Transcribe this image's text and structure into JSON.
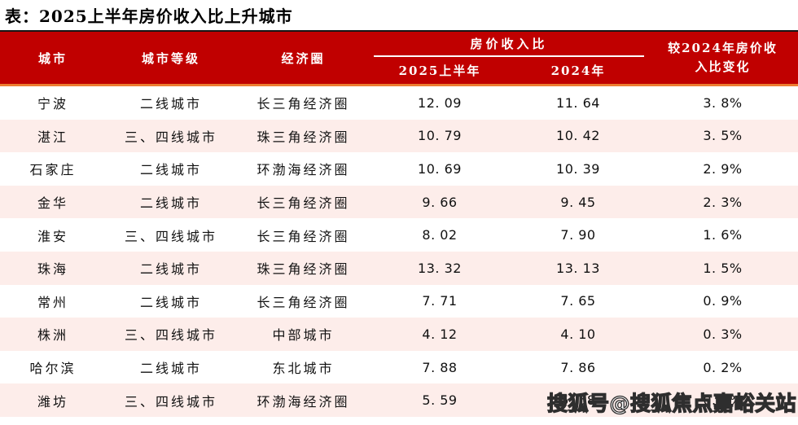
{
  "title": "表：2025上半年房价收入比上升城市",
  "watermark": {
    "text": "搜狐号@搜狐焦点嘉峪关站"
  },
  "colors": {
    "header_bg": "#C00000",
    "header_text": "#FFFFFF",
    "accent_line": "#ED7D31",
    "row_stripe": "#FDEDEA",
    "top_rule": "#161616",
    "body_text": "#111111"
  },
  "chart_data": {
    "type": "table",
    "title": "表：2025上半年房价收入比上升城市",
    "columns": [
      "城市",
      "城市等级",
      "经济圈",
      "2025上半年",
      "2024年",
      "较2024年房价收入比变化"
    ],
    "column_groups": [
      {
        "label": "房价收入比",
        "covers": [
          "2025上半年",
          "2024年"
        ]
      }
    ],
    "rows": [
      [
        "宁波",
        "二线城市",
        "长三角经济圈",
        "12. 09",
        "11. 64",
        "3. 8%"
      ],
      [
        "湛江",
        "三、四线城市",
        "珠三角经济圈",
        "10. 79",
        "10. 42",
        "3. 5%"
      ],
      [
        "石家庄",
        "二线城市",
        "环渤海经济圈",
        "10. 69",
        "10. 39",
        "2. 9%"
      ],
      [
        "金华",
        "二线城市",
        "长三角经济圈",
        "9. 66",
        "9. 45",
        "2. 3%"
      ],
      [
        "淮安",
        "三、四线城市",
        "长三角经济圈",
        "8. 02",
        "7. 90",
        "1. 6%"
      ],
      [
        "珠海",
        "二线城市",
        "珠三角经济圈",
        "13. 32",
        "13. 13",
        "1. 5%"
      ],
      [
        "常州",
        "二线城市",
        "长三角经济圈",
        "7. 71",
        "7. 65",
        "0. 9%"
      ],
      [
        "株洲",
        "三、四线城市",
        "中部城市",
        "4. 12",
        "4. 10",
        "0. 3%"
      ],
      [
        "哈尔滨",
        "二线城市",
        "东北城市",
        "7. 88",
        "7. 86",
        "0. 2%"
      ],
      [
        "潍坊",
        "三、四线城市",
        "环渤海经济圈",
        "5. 59",
        "5. 58",
        "0. 2%"
      ]
    ]
  }
}
